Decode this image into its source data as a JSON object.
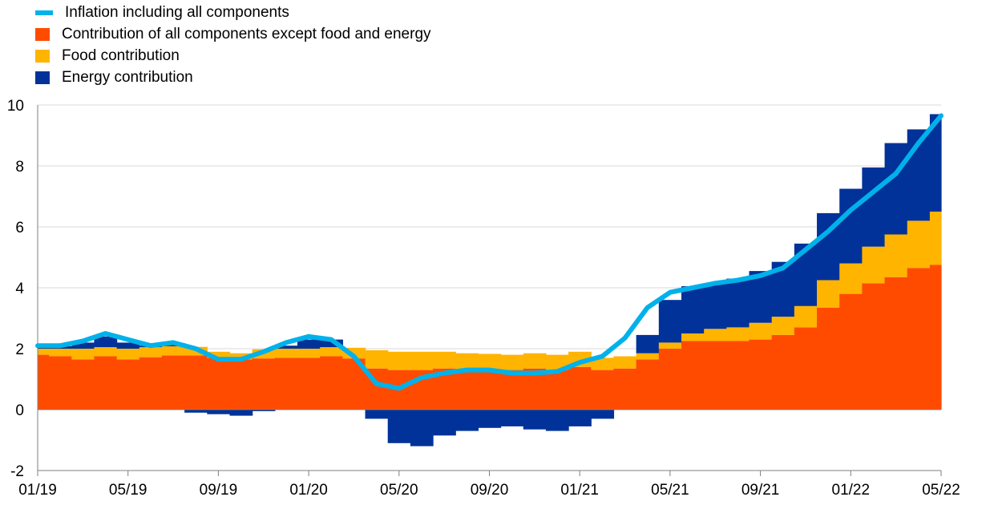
{
  "chart_data": {
    "type": "bar",
    "legend": {
      "placement": "top-left",
      "entries": [
        {
          "key": "headline",
          "label": "Inflation including all components",
          "color": "#00B1EA",
          "kind": "line"
        },
        {
          "key": "core",
          "label": "Contribution of all components except food and energy",
          "color": "#FF4B00",
          "kind": "box"
        },
        {
          "key": "food",
          "label": "Food contribution",
          "color": "#FFB400",
          "kind": "box"
        },
        {
          "key": "energy",
          "label": "Energy contribution",
          "color": "#003299",
          "kind": "box"
        }
      ]
    },
    "ylim": [
      -2,
      10
    ],
    "yticks": [
      -2,
      0,
      2,
      4,
      6,
      8,
      10
    ],
    "xticks": [
      "01/19",
      "05/19",
      "09/19",
      "01/20",
      "05/20",
      "09/20",
      "01/21",
      "05/21",
      "09/21",
      "01/22",
      "05/22"
    ],
    "grid": "horizontal",
    "months": [
      "01/19",
      "02/19",
      "03/19",
      "04/19",
      "05/19",
      "06/19",
      "07/19",
      "08/19",
      "09/19",
      "10/19",
      "11/19",
      "12/19",
      "01/20",
      "02/20",
      "03/20",
      "04/20",
      "05/20",
      "06/20",
      "07/20",
      "08/20",
      "09/20",
      "10/20",
      "11/20",
      "12/20",
      "01/21",
      "02/21",
      "03/21",
      "04/21",
      "05/21",
      "06/21",
      "07/21",
      "08/21",
      "09/21",
      "10/21",
      "11/21",
      "12/21",
      "01/22",
      "02/22",
      "03/22",
      "04/22",
      "05/22"
    ],
    "series": [
      {
        "name": "Contribution of all components except food and energy",
        "key": "core",
        "values": [
          1.8,
          1.75,
          1.65,
          1.75,
          1.65,
          1.72,
          1.78,
          1.78,
          1.7,
          1.65,
          1.68,
          1.7,
          1.7,
          1.75,
          1.68,
          1.35,
          1.3,
          1.3,
          1.35,
          1.3,
          1.28,
          1.3,
          1.35,
          1.3,
          1.4,
          1.3,
          1.35,
          1.65,
          2.0,
          2.25,
          2.25,
          2.25,
          2.3,
          2.45,
          2.7,
          3.35,
          3.8,
          4.15,
          4.35,
          4.65,
          4.75
        ]
      },
      {
        "name": "Food contribution",
        "key": "food",
        "values": [
          0.2,
          0.25,
          0.35,
          0.3,
          0.35,
          0.33,
          0.3,
          0.28,
          0.2,
          0.2,
          0.3,
          0.3,
          0.3,
          0.3,
          0.35,
          0.6,
          0.6,
          0.6,
          0.55,
          0.55,
          0.55,
          0.5,
          0.5,
          0.5,
          0.5,
          0.4,
          0.4,
          0.2,
          0.2,
          0.25,
          0.4,
          0.45,
          0.55,
          0.6,
          0.7,
          0.9,
          1.0,
          1.2,
          1.4,
          1.55,
          1.75
        ]
      },
      {
        "name": "Energy contribution",
        "key": "energy",
        "values": [
          0.12,
          0.08,
          0.2,
          0.35,
          0.2,
          0.05,
          0.1,
          -0.1,
          -0.15,
          -0.2,
          -0.05,
          0.1,
          0.3,
          0.25,
          0.0,
          -0.3,
          -1.1,
          -1.2,
          -0.85,
          -0.7,
          -0.6,
          -0.55,
          -0.65,
          -0.7,
          -0.55,
          -0.3,
          0.0,
          0.6,
          1.4,
          1.55,
          1.5,
          1.6,
          1.7,
          1.8,
          2.05,
          2.2,
          2.45,
          2.6,
          3.0,
          3.0,
          3.2
        ]
      },
      {
        "name": "Inflation including all components",
        "key": "headline",
        "values": [
          2.1,
          2.1,
          2.25,
          2.5,
          2.3,
          2.1,
          2.2,
          2.0,
          1.65,
          1.65,
          1.9,
          2.2,
          2.4,
          2.3,
          1.75,
          0.85,
          0.7,
          1.05,
          1.2,
          1.3,
          1.3,
          1.2,
          1.2,
          1.25,
          1.55,
          1.75,
          2.35,
          3.35,
          3.85,
          4.0,
          4.15,
          4.25,
          4.4,
          4.65,
          5.25,
          5.85,
          6.55,
          7.15,
          7.75,
          8.75,
          9.65
        ]
      }
    ]
  }
}
